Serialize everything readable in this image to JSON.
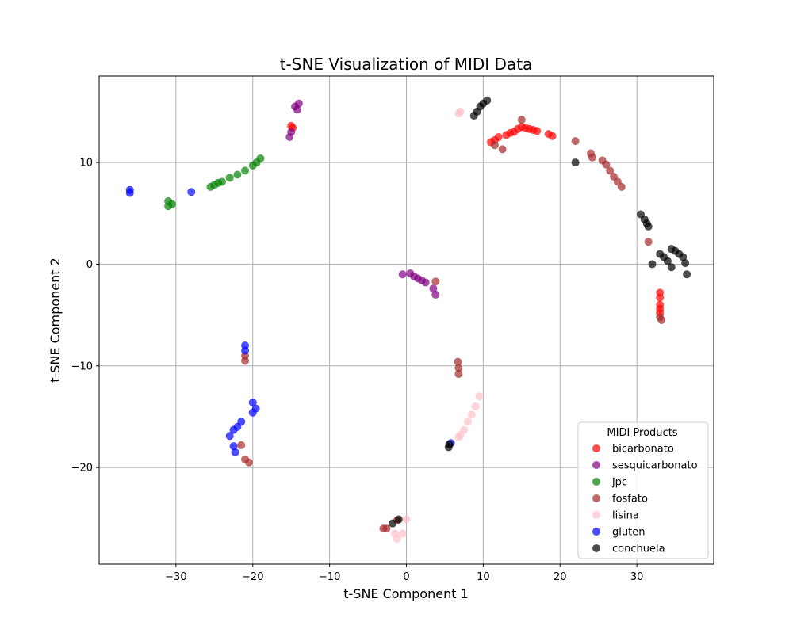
{
  "chart_data": {
    "type": "scatter",
    "title": "t-SNE Visualization of MIDI Data",
    "xlabel": "t-SNE Component 1",
    "ylabel": "t-SNE Component 2",
    "xlim": [
      -40,
      40
    ],
    "ylim": [
      -29.5,
      18.5
    ],
    "xticks": [
      -30,
      -20,
      -10,
      0,
      10,
      20,
      30
    ],
    "yticks": [
      -20,
      -10,
      0,
      10
    ],
    "grid": true,
    "legend": {
      "title": "MIDI Products",
      "placement": "lower right"
    },
    "series": [
      {
        "name": "bicarbonato",
        "color": "#ff0000",
        "points": [
          [
            -15,
            13.6
          ],
          [
            -14.8,
            13.4
          ],
          [
            11,
            12
          ],
          [
            11.5,
            12.2
          ],
          [
            12,
            12.5
          ],
          [
            13,
            12.7
          ],
          [
            13.5,
            12.9
          ],
          [
            14,
            13
          ],
          [
            14.5,
            13.3
          ],
          [
            15,
            13.5
          ],
          [
            15.5,
            13.4
          ],
          [
            16,
            13.3
          ],
          [
            16.5,
            13.2
          ],
          [
            17,
            13.1
          ],
          [
            18.5,
            12.8
          ],
          [
            19,
            12.6
          ],
          [
            33,
            -2.8
          ],
          [
            33,
            -3.3
          ],
          [
            33,
            -4
          ],
          [
            33,
            -4.4
          ],
          [
            33,
            -4.8
          ]
        ]
      },
      {
        "name": "sesquicarbonato",
        "color": "#800080",
        "points": [
          [
            -14.5,
            15.5
          ],
          [
            -14,
            15.8
          ],
          [
            -14.2,
            15.2
          ],
          [
            -15.2,
            12.5
          ],
          [
            -15,
            13
          ],
          [
            -0.5,
            -1
          ],
          [
            0.5,
            -0.9
          ],
          [
            1,
            -1.2
          ],
          [
            1.5,
            -1.4
          ],
          [
            2,
            -1.6
          ],
          [
            2.5,
            -1.8
          ],
          [
            3.5,
            -2.4
          ],
          [
            3.8,
            -3
          ]
        ]
      },
      {
        "name": "jpc",
        "color": "#008000",
        "points": [
          [
            -31,
            6.2
          ],
          [
            -31,
            5.7
          ],
          [
            -30.5,
            5.9
          ],
          [
            -25,
            7.8
          ],
          [
            -24.5,
            8
          ],
          [
            -25.5,
            7.6
          ],
          [
            -24,
            8.1
          ],
          [
            -23,
            8.5
          ],
          [
            -22,
            8.8
          ],
          [
            -21,
            9.2
          ],
          [
            -20,
            9.7
          ],
          [
            -19.5,
            10
          ],
          [
            -19,
            10.4
          ]
        ]
      },
      {
        "name": "fosfato",
        "color": "#a52a2a",
        "points": [
          [
            11.5,
            11.7
          ],
          [
            12.5,
            11.3
          ],
          [
            15,
            14.2
          ],
          [
            22,
            12.1
          ],
          [
            24,
            10.9
          ],
          [
            24.2,
            10.5
          ],
          [
            25.5,
            10.2
          ],
          [
            26,
            9.8
          ],
          [
            26.5,
            9.2
          ],
          [
            27,
            8.6
          ],
          [
            27.5,
            8.1
          ],
          [
            28,
            7.6
          ],
          [
            31.5,
            2.2
          ],
          [
            33,
            -5.2
          ],
          [
            33.2,
            -5.5
          ],
          [
            3.8,
            -1.7
          ],
          [
            6.7,
            -9.6
          ],
          [
            6.8,
            -10.2
          ],
          [
            6.8,
            -10.8
          ],
          [
            -21,
            -9
          ],
          [
            -21,
            -9.5
          ],
          [
            -21.5,
            -17.8
          ],
          [
            -21,
            -19.2
          ],
          [
            -20.5,
            -19.5
          ],
          [
            -3,
            -26
          ],
          [
            -2.6,
            -26
          ],
          [
            -1.2,
            -25.2
          ]
        ]
      },
      {
        "name": "lisina",
        "color": "#ffc0cb",
        "points": [
          [
            6.8,
            14.8
          ],
          [
            7,
            15
          ],
          [
            9.5,
            -13
          ],
          [
            9,
            -14
          ],
          [
            8.5,
            -14.8
          ],
          [
            8,
            -15.5
          ],
          [
            7.5,
            -16.3
          ],
          [
            7,
            -16.8
          ],
          [
            6.8,
            -17
          ],
          [
            -1.5,
            -26.5
          ],
          [
            -1.2,
            -27
          ],
          [
            -0.5,
            -26.5
          ],
          [
            0,
            -25.1
          ]
        ]
      },
      {
        "name": "gluten",
        "color": "#0000ff",
        "points": [
          [
            -36,
            7.3
          ],
          [
            -36,
            7
          ],
          [
            -28,
            7.1
          ],
          [
            -21,
            -8
          ],
          [
            -21,
            -8.5
          ],
          [
            -20,
            -13.6
          ],
          [
            -19.6,
            -14.2
          ],
          [
            -20,
            -14.6
          ],
          [
            -21.5,
            -15.5
          ],
          [
            -22,
            -16
          ],
          [
            -22.5,
            -16.3
          ],
          [
            -23,
            -16.9
          ],
          [
            -22.5,
            -17.9
          ],
          [
            -22.3,
            -18.5
          ],
          [
            5.8,
            -17.6
          ]
        ]
      },
      {
        "name": "conchuela",
        "color": "#000000",
        "points": [
          [
            8.8,
            14.6
          ],
          [
            9.2,
            15
          ],
          [
            9.6,
            15.5
          ],
          [
            10,
            15.8
          ],
          [
            10.5,
            16.1
          ],
          [
            22,
            10
          ],
          [
            30.5,
            4.9
          ],
          [
            31,
            4.4
          ],
          [
            31.3,
            4
          ],
          [
            31.5,
            3.7
          ],
          [
            33,
            1
          ],
          [
            33.5,
            0.7
          ],
          [
            34,
            0.3
          ],
          [
            34.5,
            1.5
          ],
          [
            35,
            1.3
          ],
          [
            35.5,
            1
          ],
          [
            36,
            0.7
          ],
          [
            36.3,
            0.1
          ],
          [
            36.5,
            -1
          ],
          [
            34.5,
            -0.3
          ],
          [
            32,
            0
          ],
          [
            5.5,
            -18
          ],
          [
            5.6,
            -17.7
          ],
          [
            -1.8,
            -25.5
          ],
          [
            -1,
            -25.1
          ]
        ]
      }
    ]
  }
}
